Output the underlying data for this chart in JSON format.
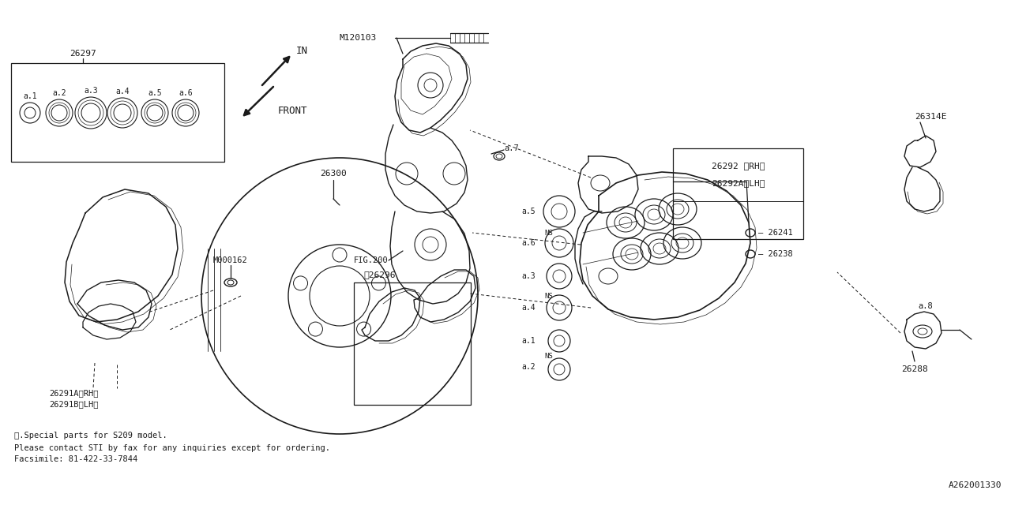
{
  "background_color": "#ffffff",
  "line_color": "#1a1a1a",
  "fig_width": 12.8,
  "fig_height": 6.4,
  "dpi": 100,
  "footnote_lines": [
    "※.Special parts for S209 model.",
    "Please contact STI by fax for any inquiries except for ordering.",
    "Facsimile: 81-422-33-7844"
  ],
  "diagram_ref": "A262001330"
}
